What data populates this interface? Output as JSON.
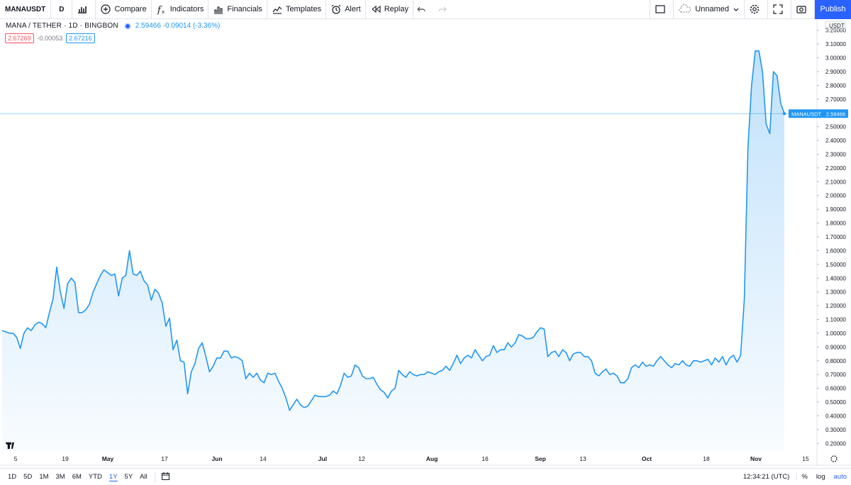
{
  "toolbar": {
    "symbol": "MANAUSDT",
    "interval": "D",
    "compare": "Compare",
    "indicators": "Indicators",
    "financials": "Financials",
    "templates": "Templates",
    "alert": "Alert",
    "replay": "Replay",
    "layout_name": "Unnamed",
    "publish": "Publish"
  },
  "legend": {
    "title": "MANA / TETHER · 1D · BINGBON",
    "values": "2.59466 -0.09014 (-3.36%)",
    "bid": "2.67269",
    "spread": "-0.00053",
    "ask": "2.67216"
  },
  "price_axis": {
    "currency": "USDT",
    "labels": [
      "3.20000",
      "3.10000",
      "3.00000",
      "2.90000",
      "2.80000",
      "2.70000",
      "2.60000",
      "2.50000",
      "2.40000",
      "2.30000",
      "2.20000",
      "2.10000",
      "2.00000",
      "1.90000",
      "1.80000",
      "1.70000",
      "1.60000",
      "1.50000",
      "1.40000",
      "1.30000",
      "1.20000",
      "1.10000",
      "1.00000",
      "0.90000",
      "0.80000",
      "0.70000",
      "0.60000",
      "0.50000",
      "0.40000",
      "0.30000",
      "0.20000"
    ],
    "last_label": "MANAUSDT",
    "last_value": "2.59466"
  },
  "time_axis": {
    "labels": [
      "5",
      "19",
      "May",
      "17",
      "Jun",
      "14",
      "Jul",
      "12",
      "Aug",
      "16",
      "Sep",
      "13",
      "Oct",
      "18",
      "Nov",
      "15"
    ]
  },
  "bottom": {
    "ranges": [
      "1D",
      "5D",
      "1M",
      "3M",
      "6M",
      "YTD",
      "1Y",
      "5Y",
      "All"
    ],
    "active_range": "1Y",
    "time": "12:34:21 (UTC)",
    "percent": "%",
    "log": "log",
    "auto": "auto"
  },
  "chart_data": {
    "type": "area",
    "series": [
      {
        "name": "MANAUSDT",
        "x_start": "5",
        "values": [
          1.02,
          1.01,
          1.0,
          1.0,
          0.97,
          0.89,
          1.0,
          1.04,
          1.02,
          1.06,
          1.08,
          1.07,
          1.04,
          1.15,
          1.25,
          1.48,
          1.3,
          1.18,
          1.36,
          1.4,
          1.37,
          1.15,
          1.15,
          1.17,
          1.21,
          1.3,
          1.36,
          1.42,
          1.46,
          1.44,
          1.42,
          1.43,
          1.27,
          1.4,
          1.42,
          1.6,
          1.43,
          1.42,
          1.45,
          1.38,
          1.35,
          1.24,
          1.32,
          1.29,
          1.22,
          1.05,
          1.11,
          0.88,
          0.95,
          0.8,
          0.79,
          0.56,
          0.72,
          0.78,
          0.89,
          0.93,
          0.83,
          0.72,
          0.76,
          0.82,
          0.82,
          0.87,
          0.87,
          0.82,
          0.83,
          0.82,
          0.8,
          0.67,
          0.71,
          0.68,
          0.71,
          0.66,
          0.64,
          0.71,
          0.7,
          0.71,
          0.65,
          0.6,
          0.53,
          0.44,
          0.48,
          0.52,
          0.48,
          0.46,
          0.47,
          0.51,
          0.55,
          0.54,
          0.54,
          0.54,
          0.55,
          0.58,
          0.56,
          0.62,
          0.71,
          0.68,
          0.69,
          0.77,
          0.75,
          0.69,
          0.67,
          0.67,
          0.68,
          0.63,
          0.59,
          0.57,
          0.53,
          0.58,
          0.6,
          0.73,
          0.7,
          0.68,
          0.72,
          0.7,
          0.69,
          0.7,
          0.7,
          0.72,
          0.71,
          0.7,
          0.72,
          0.73,
          0.76,
          0.73,
          0.78,
          0.84,
          0.78,
          0.82,
          0.84,
          0.82,
          0.88,
          0.84,
          0.8,
          0.83,
          0.84,
          0.91,
          0.86,
          0.88,
          0.88,
          0.93,
          0.9,
          0.93,
          0.99,
          0.98,
          0.96,
          0.96,
          0.97,
          1.01,
          1.04,
          1.03,
          0.83,
          0.86,
          0.87,
          0.83,
          0.88,
          0.86,
          0.8,
          0.85,
          0.86,
          0.86,
          0.83,
          0.83,
          0.8,
          0.71,
          0.69,
          0.72,
          0.74,
          0.7,
          0.71,
          0.69,
          0.64,
          0.64,
          0.67,
          0.75,
          0.77,
          0.75,
          0.79,
          0.76,
          0.77,
          0.76,
          0.8,
          0.83,
          0.8,
          0.77,
          0.75,
          0.78,
          0.77,
          0.8,
          0.77,
          0.76,
          0.8,
          0.8,
          0.79,
          0.8,
          0.81,
          0.77,
          0.82,
          0.79,
          0.83,
          0.77,
          0.82,
          0.84,
          0.79,
          0.84,
          1.25,
          2.35,
          2.8,
          3.05,
          3.05,
          2.9,
          2.52,
          2.45,
          2.9,
          2.87,
          2.67,
          2.59466
        ]
      }
    ],
    "ylim": [
      0.15,
      3.25
    ],
    "ylabel": "USDT",
    "grid": true,
    "last_price": 2.59466
  }
}
